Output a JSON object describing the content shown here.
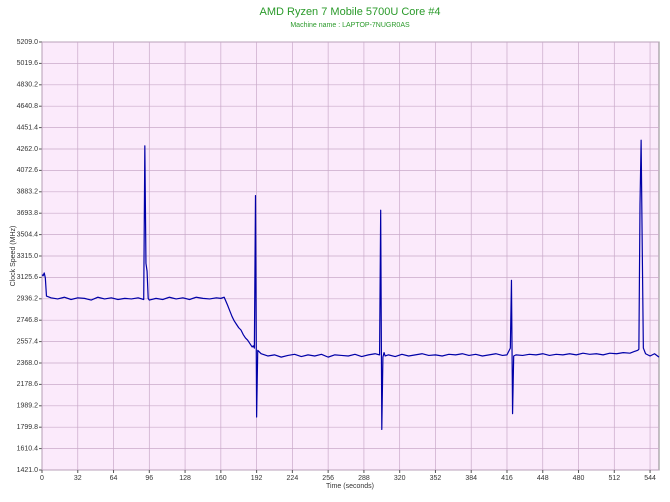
{
  "chart_data": {
    "type": "line",
    "title": "AMD Ryzen 7 Mobile 5700U Core #4",
    "subtitle": "Machine name : LAPTOP-7NUGR0AS",
    "x_label": "Time (seconds)",
    "y_label": "Clock Speed (MHz)",
    "grid": true,
    "xlim": [
      0,
      552
    ],
    "xticks": [
      0,
      32,
      64,
      96,
      128,
      160,
      192,
      224,
      256,
      288,
      320,
      352,
      384,
      416,
      448,
      480,
      512,
      544
    ],
    "ylim": [
      1421,
      5209
    ],
    "yticks": [
      {
        "value": 1421,
        "label": "1421.0"
      },
      {
        "value": 1610.4,
        "label": "1610.4"
      },
      {
        "value": 1799.8,
        "label": "1799.8"
      },
      {
        "value": 1989.2,
        "label": "1989.2"
      },
      {
        "value": 2178.6,
        "label": "2178.6"
      },
      {
        "value": 2368,
        "label": "2368.0"
      },
      {
        "value": 2557.4,
        "label": "2557.4"
      },
      {
        "value": 2746.8,
        "label": "2746.8"
      },
      {
        "value": 2936.2,
        "label": "2936.2"
      },
      {
        "value": 3125.6,
        "label": "3125.6"
      },
      {
        "value": 3315,
        "label": "3315.0"
      },
      {
        "value": 3504.4,
        "label": "3504.4"
      },
      {
        "value": 3693.8,
        "label": "3693.8"
      },
      {
        "value": 3883.2,
        "label": "3883.2"
      },
      {
        "value": 4072.6,
        "label": "4072.6"
      },
      {
        "value": 4262,
        "label": "4262.0"
      },
      {
        "value": 4451.4,
        "label": "4451.4"
      },
      {
        "value": 4640.8,
        "label": "4640.8"
      },
      {
        "value": 4830.2,
        "label": "4830.2"
      },
      {
        "value": 5019.6,
        "label": "5019.6"
      },
      {
        "value": 5209,
        "label": "5209.0"
      }
    ],
    "x": [
      0,
      1,
      2,
      3,
      4,
      8,
      14,
      20,
      26,
      32,
      38,
      44,
      50,
      56,
      62,
      68,
      74,
      80,
      86,
      91,
      92,
      93,
      94,
      95,
      96,
      102,
      108,
      114,
      120,
      126,
      132,
      138,
      144,
      150,
      156,
      160,
      163,
      166,
      168,
      170,
      172,
      174,
      176,
      178,
      180,
      182,
      184,
      186,
      188,
      189,
      190,
      191,
      192,
      193,
      196,
      202,
      208,
      214,
      220,
      226,
      232,
      238,
      244,
      250,
      256,
      262,
      268,
      274,
      280,
      286,
      292,
      298,
      302,
      303,
      304,
      305,
      306,
      307,
      310,
      316,
      322,
      328,
      334,
      340,
      346,
      352,
      358,
      364,
      370,
      376,
      382,
      388,
      394,
      400,
      406,
      412,
      416,
      418,
      419,
      420,
      421,
      422,
      424,
      430,
      436,
      442,
      448,
      454,
      460,
      466,
      472,
      478,
      484,
      490,
      496,
      502,
      508,
      514,
      520,
      526,
      530,
      533,
      534,
      535,
      536,
      537,
      538,
      540,
      544,
      548,
      552
    ],
    "series": [
      {
        "color": "#0000a8",
        "values": [
          3150,
          3140,
          3165,
          3120,
          2960,
          2945,
          2935,
          2950,
          2930,
          2945,
          2940,
          2925,
          2950,
          2935,
          2945,
          2930,
          2940,
          2935,
          2945,
          2930,
          4290,
          3250,
          3180,
          2940,
          2925,
          2940,
          2930,
          2950,
          2935,
          2945,
          2930,
          2950,
          2940,
          2935,
          2945,
          2940,
          2950,
          2880,
          2830,
          2780,
          2740,
          2710,
          2680,
          2660,
          2620,
          2590,
          2570,
          2540,
          2510,
          2520,
          2500,
          3850,
          1890,
          2480,
          2450,
          2430,
          2440,
          2420,
          2435,
          2445,
          2425,
          2440,
          2430,
          2445,
          2420,
          2440,
          2435,
          2430,
          2445,
          2425,
          2440,
          2450,
          2440,
          3720,
          1780,
          2420,
          2460,
          2430,
          2440,
          2425,
          2445,
          2430,
          2440,
          2450,
          2435,
          2440,
          2430,
          2445,
          2440,
          2450,
          2435,
          2445,
          2430,
          2440,
          2450,
          2435,
          2440,
          2480,
          2500,
          3100,
          1920,
          2430,
          2440,
          2435,
          2445,
          2440,
          2450,
          2435,
          2445,
          2440,
          2450,
          2440,
          2455,
          2445,
          2450,
          2440,
          2455,
          2450,
          2460,
          2455,
          2470,
          2480,
          2490,
          3770,
          4340,
          3400,
          2500,
          2450,
          2430,
          2450,
          2420
        ]
      }
    ]
  }
}
